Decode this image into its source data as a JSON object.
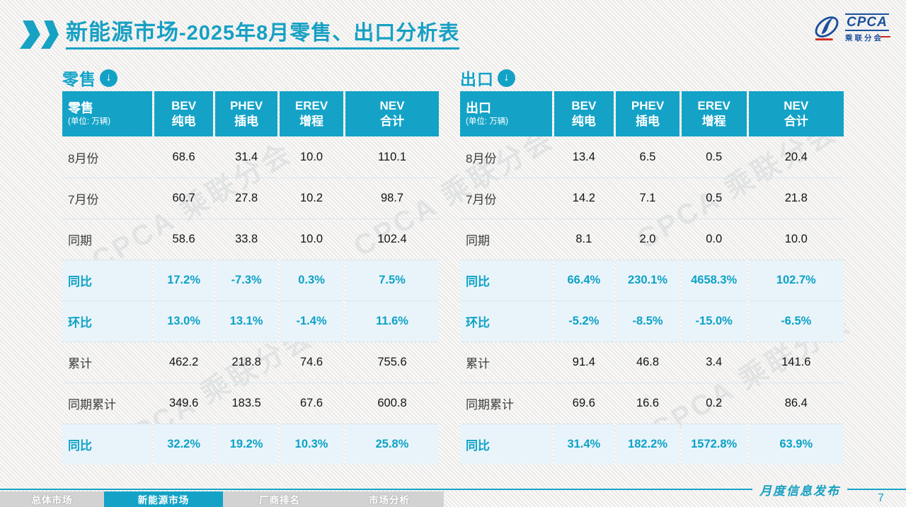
{
  "header": {
    "title_bold": "新能源市场",
    "title_rest": "-2025年8月零售、出口分析表"
  },
  "logo": {
    "text": "CPCA",
    "subtext": "乘联分会"
  },
  "tables": [
    {
      "section_label": "零售",
      "header": {
        "title": "零售",
        "unit": "(单位: 万辆)",
        "columns": [
          [
            "BEV",
            "纯电"
          ],
          [
            "PHEV",
            "插电"
          ],
          [
            "EREV",
            "增程"
          ],
          [
            "NEV",
            "合计"
          ]
        ]
      },
      "rows": [
        {
          "label": "8月份",
          "type": "normal",
          "values": [
            "68.6",
            "31.4",
            "10.0",
            "110.1"
          ]
        },
        {
          "label": "7月份",
          "type": "normal",
          "values": [
            "60.7",
            "27.8",
            "10.2",
            "98.7"
          ]
        },
        {
          "label": "同期",
          "type": "normal",
          "values": [
            "58.6",
            "33.8",
            "10.0",
            "102.4"
          ]
        },
        {
          "label": "同比",
          "type": "percent",
          "values": [
            "17.2%",
            "-7.3%",
            "0.3%",
            "7.5%"
          ]
        },
        {
          "label": "环比",
          "type": "percent",
          "values": [
            "13.0%",
            "13.1%",
            "-1.4%",
            "11.6%"
          ]
        },
        {
          "label": "累计",
          "type": "normal",
          "values": [
            "462.2",
            "218.8",
            "74.6",
            "755.6"
          ]
        },
        {
          "label": "同期累计",
          "type": "normal",
          "values": [
            "349.6",
            "183.5",
            "67.6",
            "600.8"
          ]
        },
        {
          "label": "同比",
          "type": "percent",
          "values": [
            "32.2%",
            "19.2%",
            "10.3%",
            "25.8%"
          ]
        }
      ]
    },
    {
      "section_label": "出口",
      "header": {
        "title": "出口",
        "unit": "(单位: 万辆)",
        "columns": [
          [
            "BEV",
            "纯电"
          ],
          [
            "PHEV",
            "插电"
          ],
          [
            "EREV",
            "增程"
          ],
          [
            "NEV",
            "合计"
          ]
        ]
      },
      "rows": [
        {
          "label": "8月份",
          "type": "normal",
          "values": [
            "13.4",
            "6.5",
            "0.5",
            "20.4"
          ]
        },
        {
          "label": "7月份",
          "type": "normal",
          "values": [
            "14.2",
            "7.1",
            "0.5",
            "21.8"
          ]
        },
        {
          "label": "同期",
          "type": "normal",
          "values": [
            "8.1",
            "2.0",
            "0.0",
            "10.0"
          ]
        },
        {
          "label": "同比",
          "type": "percent",
          "values": [
            "66.4%",
            "230.1%",
            "4658.3%",
            "102.7%"
          ]
        },
        {
          "label": "环比",
          "type": "percent",
          "values": [
            "-5.2%",
            "-8.5%",
            "-15.0%",
            "-6.5%"
          ]
        },
        {
          "label": "累计",
          "type": "normal",
          "values": [
            "91.4",
            "46.8",
            "3.4",
            "141.6"
          ]
        },
        {
          "label": "同期累计",
          "type": "normal",
          "values": [
            "69.6",
            "16.6",
            "0.2",
            "86.4"
          ]
        },
        {
          "label": "同比",
          "type": "percent",
          "values": [
            "31.4%",
            "182.2%",
            "1572.8%",
            "63.9%"
          ]
        }
      ]
    }
  ],
  "watermark": {
    "text": "CPCA 乘联分会"
  },
  "footer": {
    "release_label": "月度信息发布",
    "page_number": "7",
    "tabs": [
      {
        "label": "总体市场",
        "active": false
      },
      {
        "label": "新能源市场",
        "active": true
      },
      {
        "label": "厂商排名",
        "active": false
      },
      {
        "label": "市场分析",
        "active": false
      }
    ]
  },
  "colors": {
    "teal_header": "#14a3c7",
    "teal_text": "#0da2c6",
    "row_highlight": "#e9f4fa",
    "logo_blue": "#1a4f9c",
    "logo_red": "#cc2a1e"
  }
}
